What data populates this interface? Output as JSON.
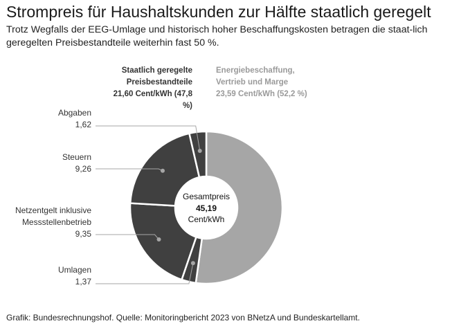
{
  "title": "Strompreis für Haushaltskunden zur Hälfte staatlich geregelt",
  "subtitle": "Trotz Wegfalls der EEG-Umlage und historisch hoher Beschaffungskosten betragen die staat-lich geregelten Preisbestandteile weiterhin fast 50 %.",
  "groups": {
    "state": {
      "line1": "Staatlich geregelte",
      "line2": "Preisbestandteile",
      "line3": "21,60 Cent/kWh (47,8 %)"
    },
    "market": {
      "line1": "Energiebeschaffung,",
      "line2": "Vertrieb und Marge",
      "line3": "23,59 Cent/kWh (52,2 %)"
    }
  },
  "center": {
    "label": "Gesamtpreis",
    "value": "45,19",
    "unit": "Cent/kWh"
  },
  "footer": "Grafik: Bundesrechnungshof. Quelle: Monitoringbericht 2023 von BNetzA und Bundeskartellamt.",
  "colors": {
    "market": "#a6a6a6",
    "state": "#404040",
    "leader": "#a6a6a6"
  },
  "chart_data": {
    "type": "pie",
    "variant": "donut",
    "total": 45.19,
    "series": [
      {
        "name": "Energiebeschaffung, Vertrieb und Marge",
        "value": 23.59,
        "group": "market"
      },
      {
        "name": "Umlagen",
        "value": 1.37,
        "group": "state",
        "label_lines": [
          "Umlagen",
          "1,37"
        ]
      },
      {
        "name": "Netzentgelt inklusive Messstellenbetrieb",
        "value": 9.35,
        "group": "state",
        "label_lines": [
          "Netzentgelt inklusive",
          "Messstellenbetrieb",
          "9,35"
        ]
      },
      {
        "name": "Steuern",
        "value": 9.26,
        "group": "state",
        "label_lines": [
          "Steuern",
          "9,26"
        ]
      },
      {
        "name": "Abgaben",
        "value": 1.62,
        "group": "state",
        "label_lines": [
          "Abgaben",
          "1,62"
        ]
      }
    ]
  }
}
